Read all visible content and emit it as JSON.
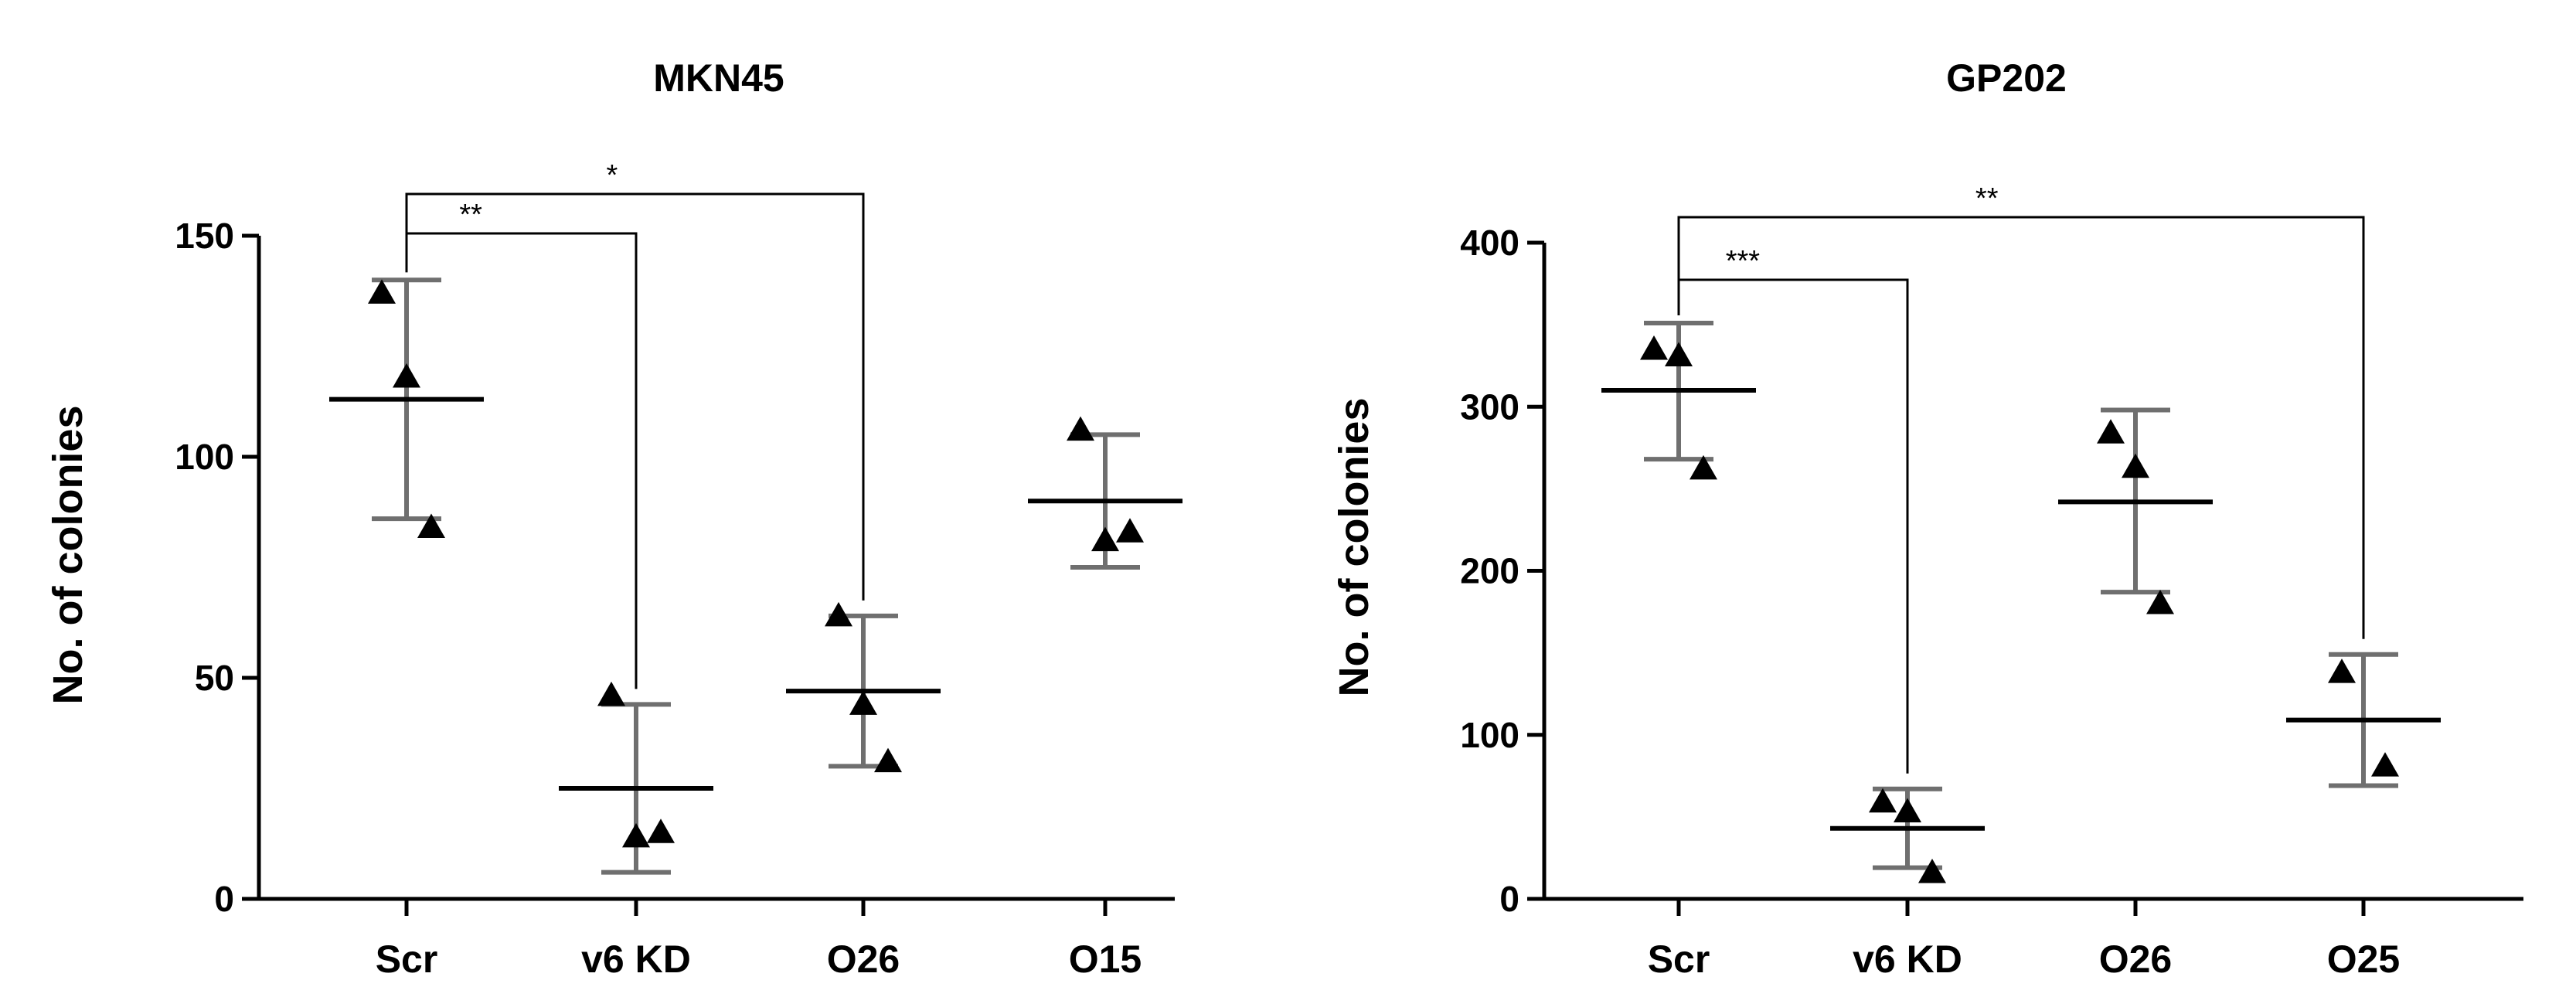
{
  "chart_data": [
    {
      "type": "scatter",
      "title": "MKN45",
      "ylabel": "No. of colonies",
      "xlabel": "",
      "ylim": [
        0,
        150
      ],
      "yticks": [
        0,
        50,
        100,
        150
      ],
      "categories": [
        "Scr",
        "v6 KD",
        "O26",
        "O15"
      ],
      "marker": "triangle",
      "groups": [
        {
          "category": "Scr",
          "points": [
            137,
            118,
            84
          ],
          "mean": 113,
          "sd_low": 86,
          "sd_high": 140
        },
        {
          "category": "v6 KD",
          "points": [
            46,
            14,
            15
          ],
          "mean": 25,
          "sd_low": 6,
          "sd_high": 44
        },
        {
          "category": "O26",
          "points": [
            64,
            44,
            31
          ],
          "mean": 47,
          "sd_low": 30,
          "sd_high": 64
        },
        {
          "category": "O15",
          "points": [
            106,
            81,
            83
          ],
          "mean": 90,
          "sd_low": 75,
          "sd_high": 105
        }
      ],
      "significance": [
        {
          "from": "Scr",
          "to": "v6 KD",
          "label": "**"
        },
        {
          "from": "Scr",
          "to": "O26",
          "label": "*"
        }
      ]
    },
    {
      "type": "scatter",
      "title": "GP202",
      "ylabel": "No. of colonies",
      "xlabel": "",
      "ylim": [
        0,
        400
      ],
      "yticks": [
        0,
        100,
        200,
        300,
        400
      ],
      "categories": [
        "Scr",
        "v6 KD",
        "O26",
        "O25"
      ],
      "marker": "triangle",
      "groups": [
        {
          "category": "Scr",
          "points": [
            335,
            331,
            262
          ],
          "mean": 310,
          "sd_low": 268,
          "sd_high": 351
        },
        {
          "category": "v6 KD",
          "points": [
            59,
            53,
            16
          ],
          "mean": 43,
          "sd_low": 19,
          "sd_high": 67
        },
        {
          "category": "O26",
          "points": [
            284,
            263,
            180
          ],
          "mean": 242,
          "sd_low": 187,
          "sd_high": 298
        },
        {
          "category": "O25",
          "points": [
            138,
            81
          ],
          "mean": 109,
          "sd_low": 69,
          "sd_high": 149
        }
      ],
      "significance": [
        {
          "from": "Scr",
          "to": "v6 KD",
          "label": "***"
        },
        {
          "from": "Scr",
          "to": "O25",
          "label": "**"
        }
      ]
    }
  ]
}
